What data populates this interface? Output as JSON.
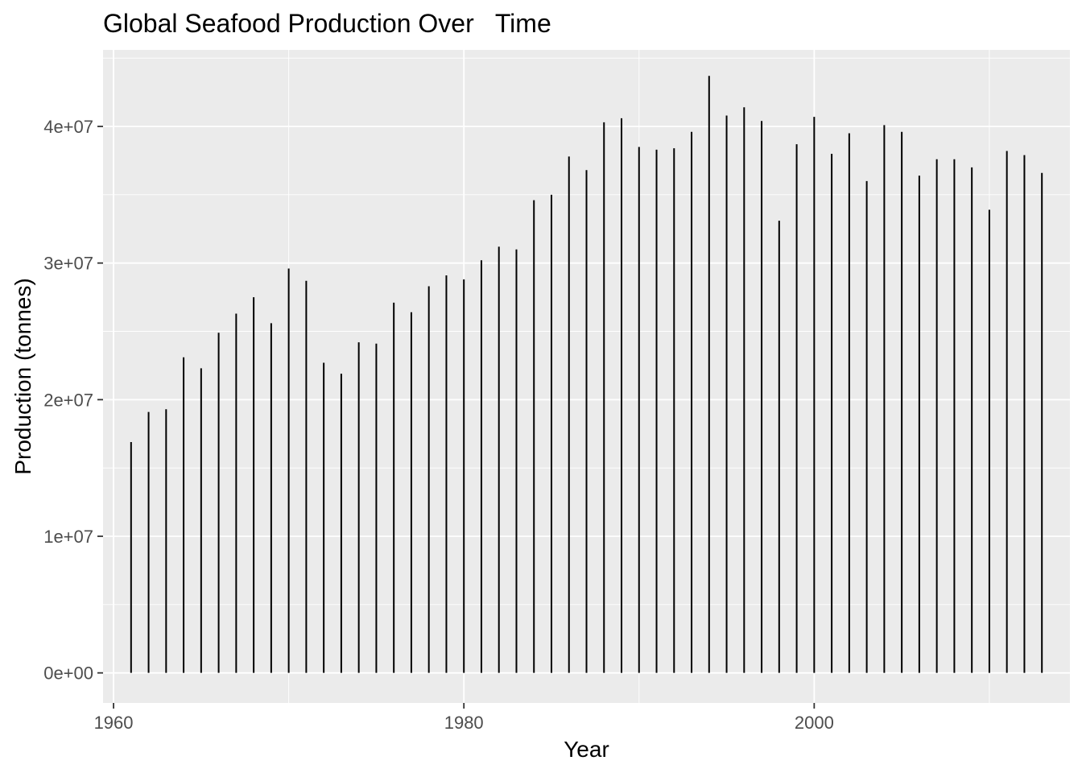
{
  "chart_data": {
    "type": "bar",
    "title": "Global Seafood Production Over   Time",
    "xlabel": "Year",
    "ylabel": "Production (tonnes)",
    "xlim": [
      1959.4,
      2014.6
    ],
    "ylim": [
      -2200000,
      45600000
    ],
    "x_ticks": [
      1960,
      1980,
      2000
    ],
    "x_tick_labels": [
      "1960",
      "1980",
      "2000"
    ],
    "y_ticks": [
      0,
      10000000,
      20000000,
      30000000,
      40000000
    ],
    "y_tick_labels": [
      "0e+00",
      "1e+07",
      "2e+07",
      "3e+07",
      "4e+07"
    ],
    "grid": true,
    "legend": "none",
    "colors": {
      "panel": "#ebebeb",
      "grid": "#ffffff",
      "bar": "#000000"
    },
    "x": [
      1961,
      1962,
      1963,
      1964,
      1965,
      1966,
      1967,
      1968,
      1969,
      1970,
      1971,
      1972,
      1973,
      1974,
      1975,
      1976,
      1977,
      1978,
      1979,
      1980,
      1981,
      1982,
      1983,
      1984,
      1985,
      1986,
      1987,
      1988,
      1989,
      1990,
      1991,
      1992,
      1993,
      1994,
      1995,
      1996,
      1997,
      1998,
      1999,
      2000,
      2001,
      2002,
      2003,
      2004,
      2005,
      2006,
      2007,
      2008,
      2009,
      2010,
      2011,
      2012,
      2013
    ],
    "values": [
      16900000,
      19100000,
      19300000,
      23100000,
      22300000,
      24900000,
      26300000,
      27500000,
      25600000,
      29600000,
      28700000,
      22700000,
      21900000,
      24200000,
      24100000,
      27100000,
      26400000,
      28300000,
      29100000,
      28800000,
      30200000,
      31200000,
      31000000,
      34600000,
      35000000,
      37800000,
      36800000,
      40300000,
      40600000,
      38500000,
      38300000,
      38400000,
      39600000,
      43700000,
      40800000,
      41400000,
      40400000,
      33100000,
      38700000,
      40700000,
      38000000,
      39500000,
      36000000,
      40100000,
      39600000,
      36400000,
      37600000,
      37600000,
      37000000,
      33900000,
      38200000,
      37900000,
      36600000
    ]
  }
}
